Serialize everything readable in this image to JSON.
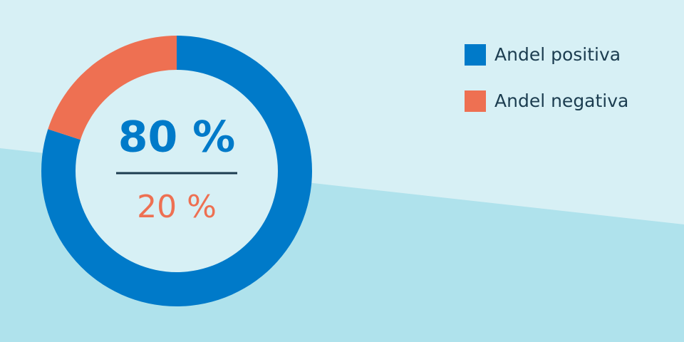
{
  "chart_data": {
    "type": "pie",
    "categories": [
      "Andel positiva",
      "Andel negativa"
    ],
    "values": [
      80,
      20
    ],
    "value_labels": [
      "80 %",
      "20 %"
    ],
    "colors": [
      "#007ac9",
      "#ee7052"
    ],
    "legend": "top-right"
  }
}
